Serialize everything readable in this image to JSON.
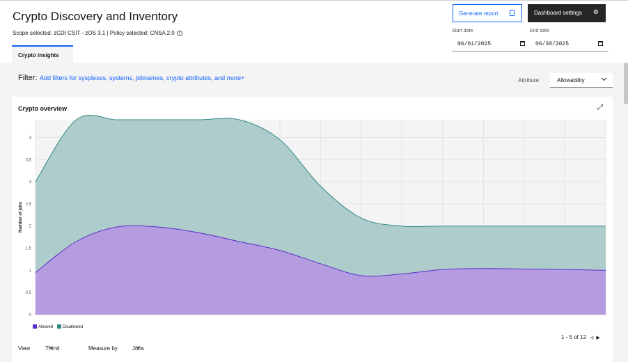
{
  "header": {
    "title": "Crypto Discovery and Inventory",
    "scope": "Scope selected: zCDI CSIT - zOS 3.1 | Policy selected: CNSA 2.0",
    "info_icon": "info-icon",
    "tab_label": "Crypto insights",
    "generate_report_label": "Generate report",
    "generate_report_icon": "clipboard-icon",
    "dashboard_settings_label": "Dashboard settings",
    "dashboard_settings_icon": "gear-icon",
    "start_date_label": "Start date",
    "start_date_value": "06/01/2025",
    "end_date_label": "End date",
    "end_date_value": "06/30/2025",
    "calendar_icon": "calendar-icon"
  },
  "filter": {
    "label": "Filter:",
    "link_text": "Add filters for sysplexes, systems, jobnames, crypto attributes, and more+",
    "attribute_label": "Attribute:",
    "attribute_value": "Allowability"
  },
  "overview": {
    "title": "Crypto overview",
    "expand_icon": "maximize-icon",
    "pagination": "1 - 5 of 12",
    "view_label": "View",
    "view_value": "Trend",
    "measure_label": "Measure by",
    "measure_value": "Jobs"
  },
  "colors": {
    "allowed": "#5a2cc7",
    "allowed_fill": "#b59ce0",
    "disallowed": "#2f8a84",
    "disallowed_fill": "#aecccb",
    "accent": "#0f62fe"
  },
  "chart_data": {
    "type": "area",
    "ylabel": "Number of jobs",
    "ylim": [
      0,
      4.4
    ],
    "yticks": [
      "0",
      "0.5",
      "1",
      "1.5",
      "2",
      "2.5",
      "3",
      "3.5",
      "4"
    ],
    "x": [
      0,
      1,
      2,
      3,
      4,
      5,
      6,
      7,
      8,
      9,
      10,
      11,
      12,
      13,
      14
    ],
    "grid": true,
    "legend_position": "bottom-left",
    "series": [
      {
        "name": "Allowed",
        "values": [
          0.95,
          1.65,
          1.98,
          1.98,
          1.85,
          1.65,
          1.45,
          1.15,
          0.88,
          0.92,
          1.02,
          1.04,
          1.03,
          1.02,
          1.0
        ]
      },
      {
        "name": "Disallowed",
        "values": [
          2.05,
          2.9,
          2.45,
          2.45,
          2.6,
          2.8,
          2.5,
          1.75,
          1.3,
          1.08,
          0.98,
          0.96,
          0.97,
          0.98,
          1.0
        ]
      }
    ]
  }
}
